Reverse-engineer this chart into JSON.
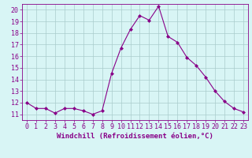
{
  "x": [
    0,
    1,
    2,
    3,
    4,
    5,
    6,
    7,
    8,
    9,
    10,
    11,
    12,
    13,
    14,
    15,
    16,
    17,
    18,
    19,
    20,
    21,
    22,
    23
  ],
  "y": [
    12.0,
    11.5,
    11.5,
    11.1,
    11.5,
    11.5,
    11.3,
    11.0,
    11.3,
    14.5,
    16.7,
    18.3,
    19.5,
    19.1,
    20.3,
    17.7,
    17.2,
    15.9,
    15.2,
    14.2,
    13.0,
    12.1,
    11.5,
    11.2
  ],
  "line_color": "#880088",
  "marker": "D",
  "marker_size": 2.0,
  "background_color": "#d8f5f5",
  "grid_color": "#aacccc",
  "xlabel": "Windchill (Refroidissement éolien,°C)",
  "xlabel_fontsize": 6.5,
  "tick_fontsize": 6.0,
  "ylim": [
    10.5,
    20.5
  ],
  "xlim": [
    -0.5,
    23.5
  ],
  "yticks": [
    11,
    12,
    13,
    14,
    15,
    16,
    17,
    18,
    19,
    20
  ],
  "xticks": [
    0,
    1,
    2,
    3,
    4,
    5,
    6,
    7,
    8,
    9,
    10,
    11,
    12,
    13,
    14,
    15,
    16,
    17,
    18,
    19,
    20,
    21,
    22,
    23
  ]
}
